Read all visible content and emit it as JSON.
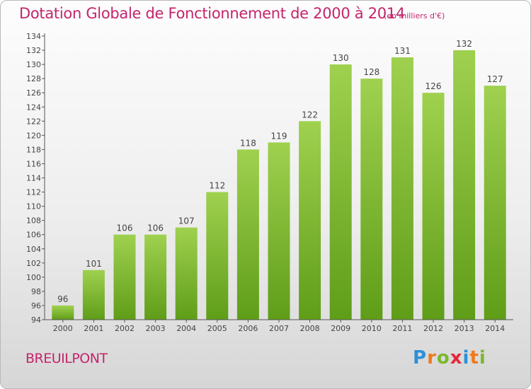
{
  "title": "Dotation Globale de Fonctionnement de 2000 à 2014",
  "subtitle": "(en milliers d'€)",
  "commune": "BREUILPONT",
  "logo": {
    "letters": [
      "P",
      "r",
      "o",
      "x",
      "i",
      "t",
      "i"
    ],
    "colors": [
      "#2f8fd8",
      "#f07a1c",
      "#7ab82e",
      "#e8263a",
      "#2f8fd8",
      "#f07a1c",
      "#7ab82e"
    ]
  },
  "colors": {
    "bar_top": "#9fd14f",
    "bar_bottom": "#5f9d18",
    "text": "#c4256c"
  },
  "chart_data": {
    "type": "bar",
    "categories": [
      "2000",
      "2001",
      "2002",
      "2003",
      "2004",
      "2005",
      "2006",
      "2007",
      "2008",
      "2009",
      "2010",
      "2011",
      "2012",
      "2013",
      "2014"
    ],
    "values": [
      96,
      101,
      106,
      106,
      107,
      112,
      118,
      119,
      122,
      130,
      128,
      131,
      126,
      132,
      127
    ],
    "data_labels": [
      "96",
      "101",
      "106",
      "106",
      "107",
      "112",
      "118",
      "119",
      "122",
      "130",
      "128",
      "131",
      "126",
      "132",
      "127"
    ],
    "yticks": [
      "94",
      "96",
      "98",
      "100",
      "102",
      "104",
      "106",
      "108",
      "110",
      "112",
      "114",
      "116",
      "118",
      "120",
      "122",
      "124",
      "126",
      "128",
      "130",
      "132",
      "134"
    ],
    "ylim": [
      94,
      134
    ],
    "grid": false,
    "title": "Dotation Globale de Fonctionnement de 2000 à 2014",
    "xlabel": "",
    "ylabel": ""
  }
}
